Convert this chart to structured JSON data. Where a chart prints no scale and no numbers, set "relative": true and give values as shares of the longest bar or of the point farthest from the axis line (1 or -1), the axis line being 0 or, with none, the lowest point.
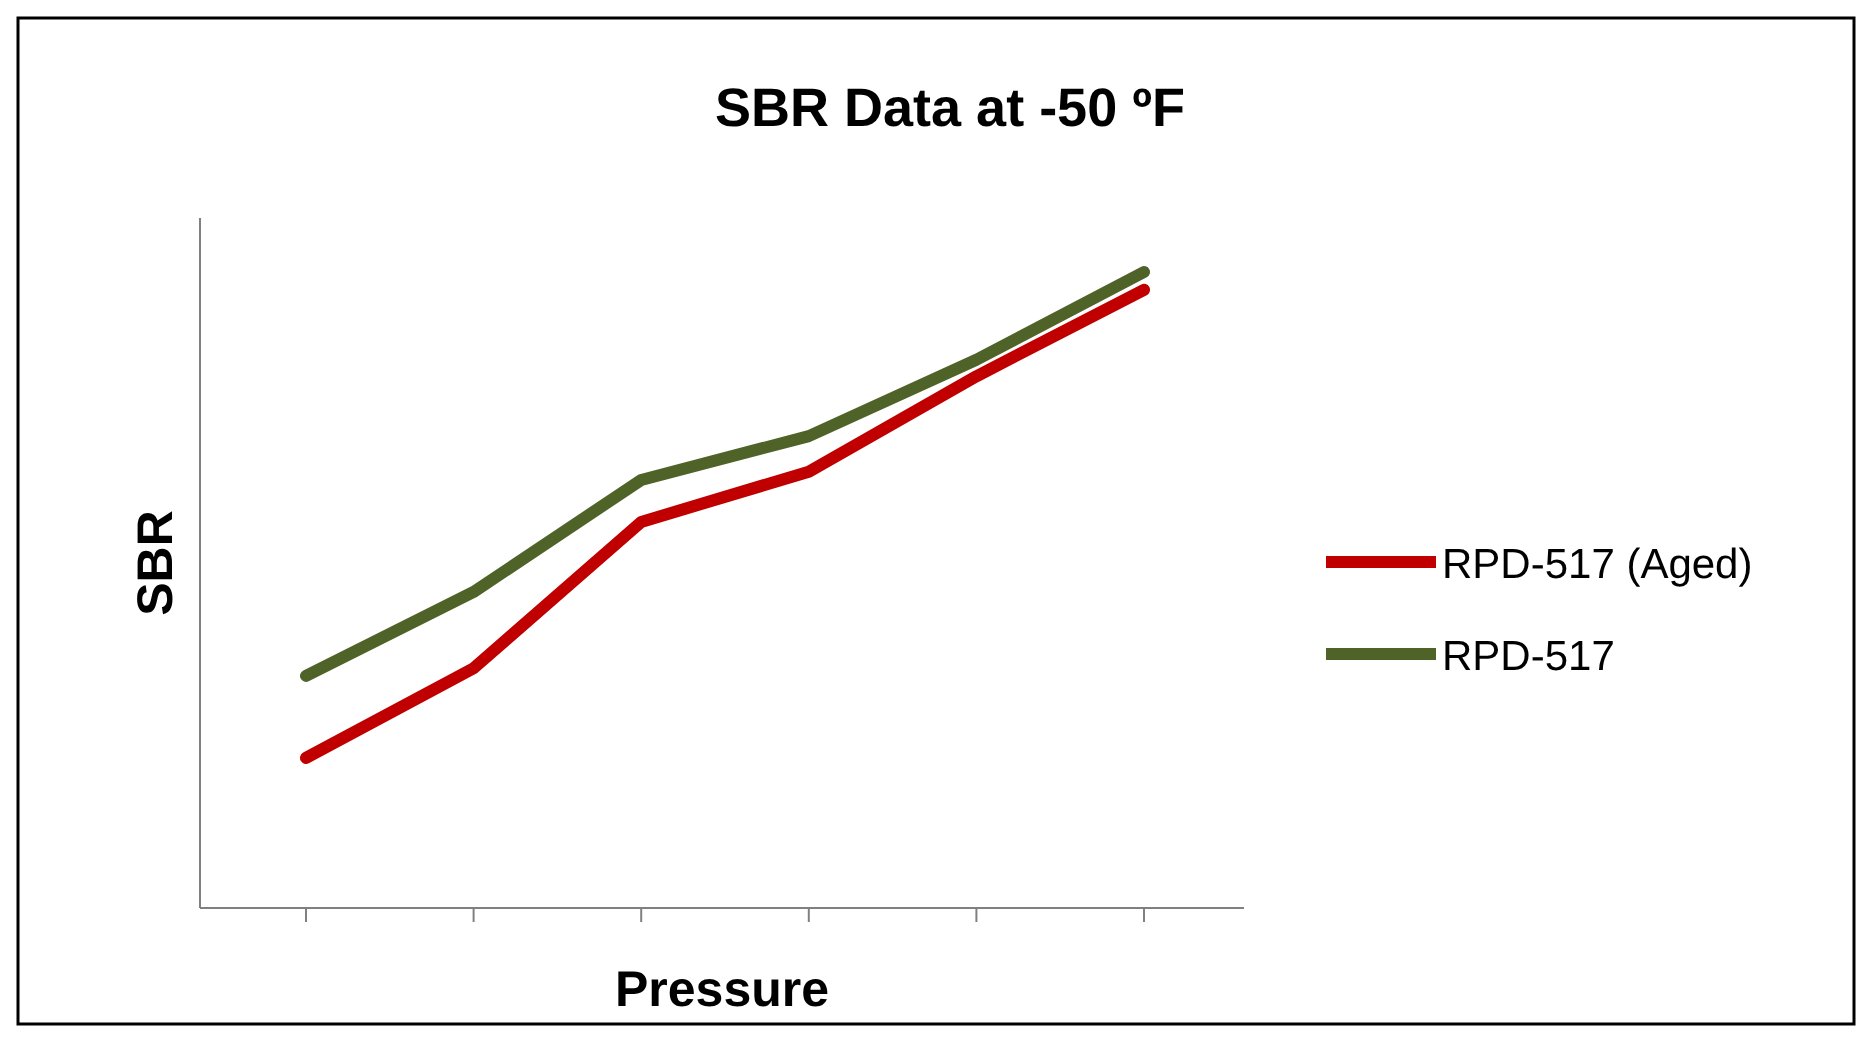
{
  "chart_data": {
    "type": "line",
    "title": "SBR Data at -50 ºF",
    "xlabel": "Pressure",
    "ylabel": "SBR",
    "relative": true,
    "legend": "right",
    "categories": [
      null,
      null,
      null,
      null,
      null,
      null
    ],
    "series": [
      {
        "name": "RPD-517 (Aged)",
        "color": "#c00000",
        "values": [
          0.236,
          0.377,
          0.607,
          0.686,
          0.836,
          0.972
        ]
      },
      {
        "name": "RPD-517",
        "color": "#4f6228",
        "values": [
          0.365,
          0.497,
          0.673,
          0.742,
          0.862,
          1
        ]
      }
    ]
  }
}
